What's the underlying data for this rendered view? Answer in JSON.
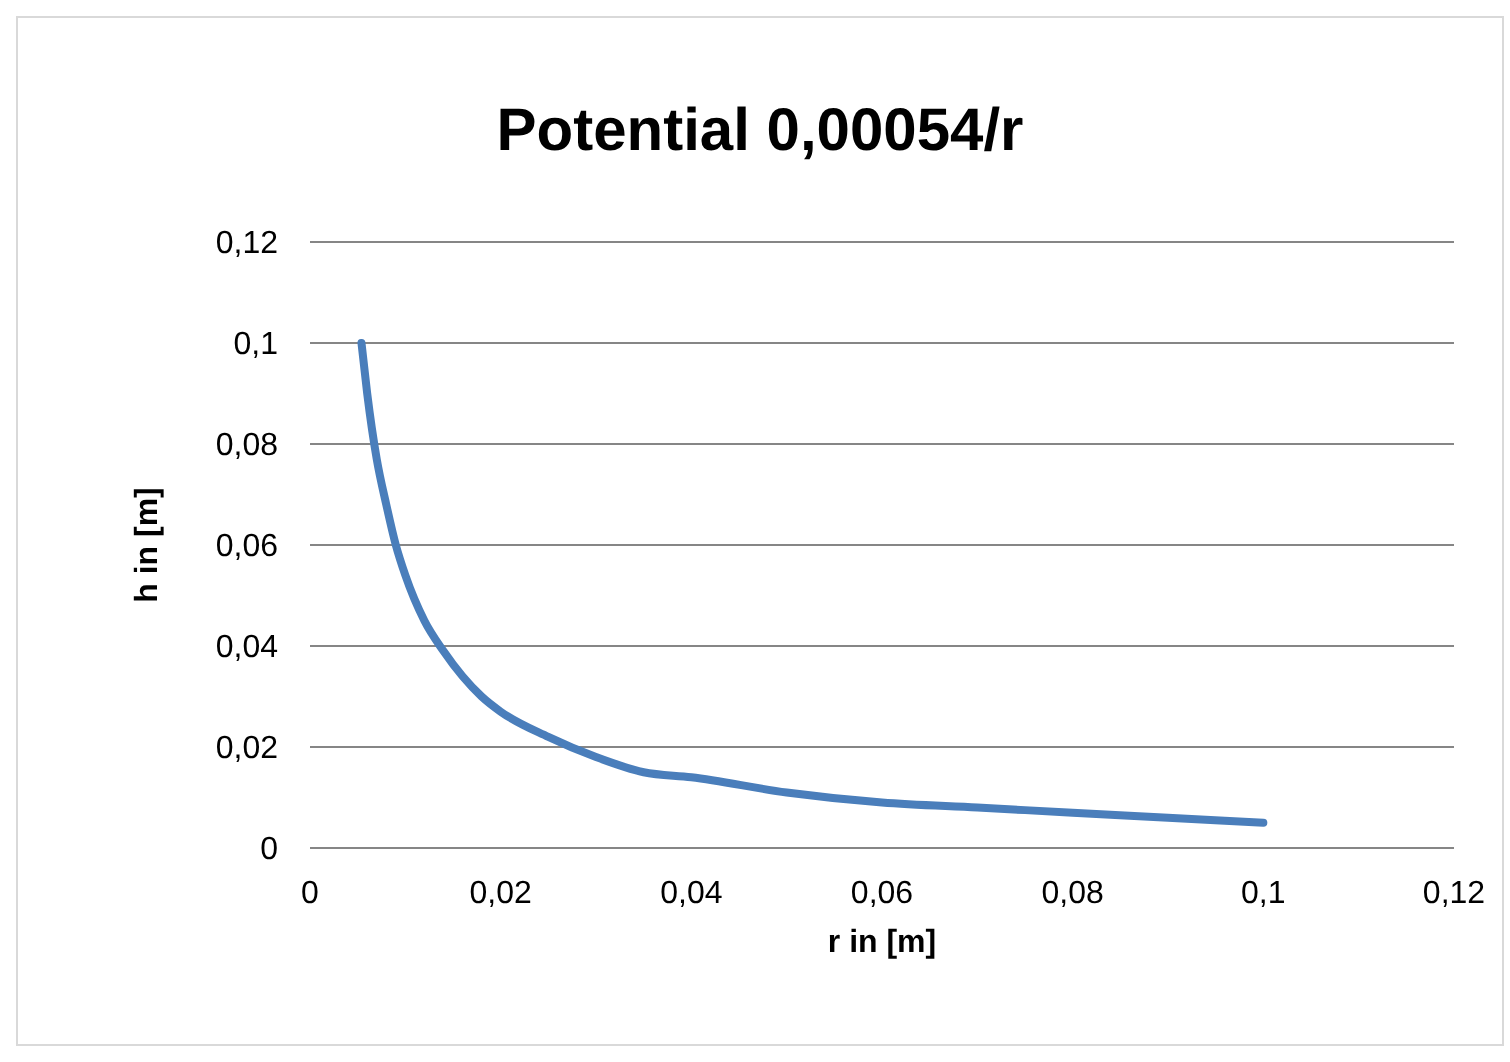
{
  "chart_data": {
    "type": "line",
    "title": "Potential 0,00054/r",
    "xlabel": "r in [m]",
    "ylabel": "h in [m]",
    "x": [
      0.0054,
      0.006,
      0.007,
      0.008,
      0.009,
      0.01,
      0.012,
      0.014,
      0.016,
      0.018,
      0.02,
      0.025,
      0.03,
      0.035,
      0.04,
      0.05,
      0.06,
      0.07,
      0.08,
      0.09,
      0.1
    ],
    "series": [
      {
        "color": "#4a7ebb",
        "values": [
          0.1,
          0.09,
          0.077,
          0.068,
          0.06,
          0.054,
          0.045,
          0.039,
          0.034,
          0.03,
          0.027,
          0.022,
          0.018,
          0.015,
          0.014,
          0.011,
          0.009,
          0.008,
          0.007,
          0.006,
          0.005
        ]
      }
    ],
    "xlim": [
      0,
      0.12
    ],
    "ylim": [
      0,
      0.12
    ],
    "xticks": [
      0,
      {
        "value": 0.02,
        "label": "0,02"
      },
      {
        "value": 0.04,
        "label": "0,04"
      },
      {
        "value": 0.06,
        "label": "0,06"
      },
      {
        "value": 0.08,
        "label": "0,08"
      },
      {
        "value": 0.1,
        "label": "0,1"
      },
      {
        "value": 0.12,
        "label": "0,12"
      }
    ],
    "yticks": [
      0,
      {
        "value": 0.02,
        "label": "0,02"
      },
      {
        "value": 0.04,
        "label": "0,04"
      },
      {
        "value": 0.06,
        "label": "0,06"
      },
      {
        "value": 0.08,
        "label": "0,08"
      },
      {
        "value": 0.1,
        "label": "0,1"
      },
      {
        "value": 0.12,
        "label": "0,12"
      }
    ],
    "grid": "y",
    "marker": "none",
    "line_style": "solid"
  }
}
